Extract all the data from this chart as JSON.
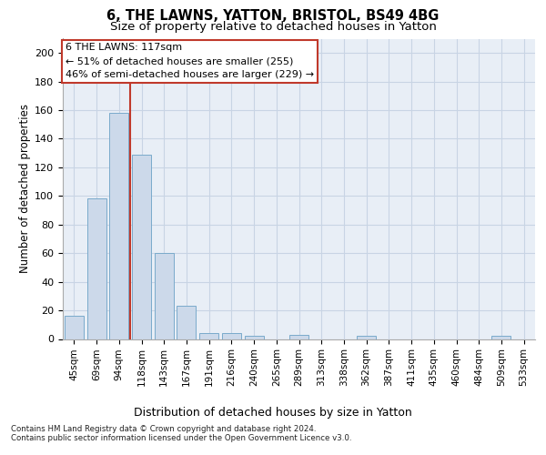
{
  "title1": "6, THE LAWNS, YATTON, BRISTOL, BS49 4BG",
  "title2": "Size of property relative to detached houses in Yatton",
  "xlabel": "Distribution of detached houses by size in Yatton",
  "ylabel": "Number of detached properties",
  "footnote1": "Contains HM Land Registry data © Crown copyright and database right 2024.",
  "footnote2": "Contains public sector information licensed under the Open Government Licence v3.0.",
  "categories": [
    "45sqm",
    "69sqm",
    "94sqm",
    "118sqm",
    "143sqm",
    "167sqm",
    "191sqm",
    "216sqm",
    "240sqm",
    "265sqm",
    "289sqm",
    "313sqm",
    "338sqm",
    "362sqm",
    "387sqm",
    "411sqm",
    "435sqm",
    "460sqm",
    "484sqm",
    "509sqm",
    "533sqm"
  ],
  "values": [
    16,
    98,
    158,
    129,
    60,
    23,
    4,
    4,
    2,
    0,
    3,
    0,
    0,
    2,
    0,
    0,
    0,
    0,
    0,
    2,
    0
  ],
  "bar_color": "#ccd9ea",
  "bar_edge_color": "#7aaacb",
  "vline_color": "#c0392b",
  "vline_x": 2.5,
  "annotation_text": "6 THE LAWNS: 117sqm\n← 51% of detached houses are smaller (255)\n46% of semi-detached houses are larger (229) →",
  "annotation_box_edgecolor": "#c0392b",
  "ylim": [
    0,
    210
  ],
  "yticks": [
    0,
    20,
    40,
    60,
    80,
    100,
    120,
    140,
    160,
    180,
    200
  ],
  "grid_color": "#c8d4e4",
  "bg_color": "#e8eef6",
  "title1_fontsize": 10.5,
  "title2_fontsize": 9.5,
  "xlabel_fontsize": 9,
  "ylabel_fontsize": 8.5,
  "tick_fontsize": 7.5,
  "footnote_fontsize": 6.2,
  "annotation_fontsize": 8.0
}
